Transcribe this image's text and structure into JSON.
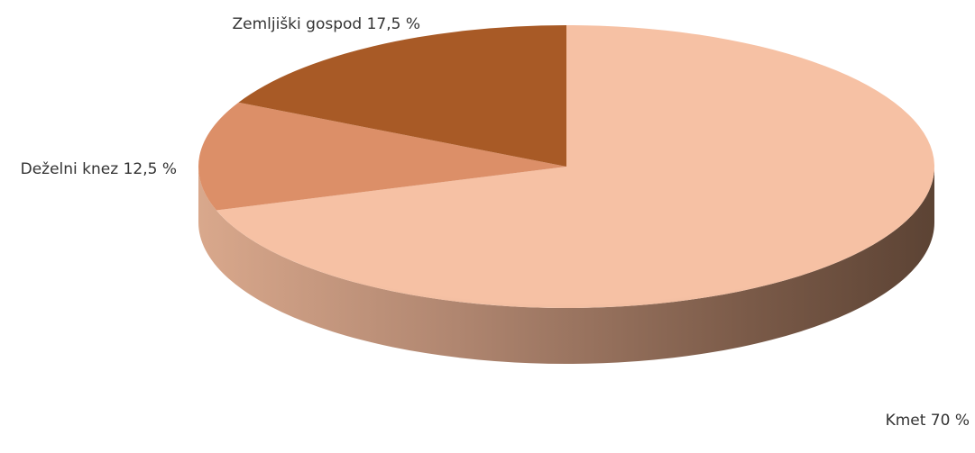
{
  "chart_data": {
    "type": "pie",
    "title": "",
    "categories": [
      "Kmet",
      "Deželni knez",
      "Zemljiški gospod"
    ],
    "values": [
      70,
      12.5,
      17.5
    ],
    "labels": [
      "Kmet 70 %",
      "Deželni knez 12,5 %",
      "Zemljiški gospod 17,5 %"
    ],
    "colors": [
      "#F6C1A4",
      "#DC8F68",
      "#A85A26"
    ],
    "start_angle_deg": 90,
    "direction": "clockwise",
    "legend": "none",
    "style": "3d"
  }
}
